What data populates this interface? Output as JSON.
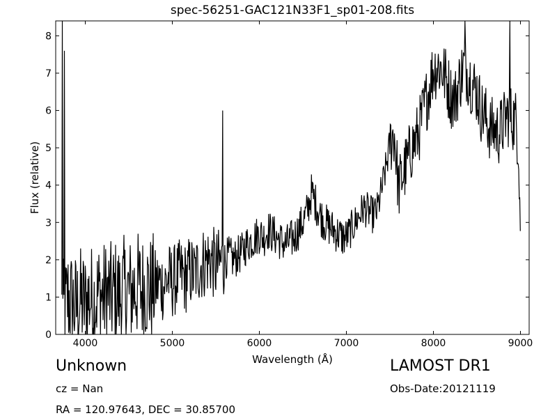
{
  "chart_data": {
    "type": "line",
    "title": "spec-56251-GAC121N33F1_sp01-208.fits",
    "xlabel": "Wavelength (Å)",
    "ylabel": "Flux (relative)",
    "xlim": [
      3660,
      9100
    ],
    "ylim": [
      0,
      8.4
    ],
    "xticks": [
      4000,
      5000,
      6000,
      7000,
      8000,
      9000
    ],
    "yticks": [
      0,
      1,
      2,
      3,
      4,
      5,
      6,
      7,
      8
    ],
    "grid": false,
    "line_color": "#000000",
    "spikes": [
      {
        "x": 3740,
        "y": 8.4
      },
      {
        "x": 3760,
        "y": 7.6
      },
      {
        "x": 5577,
        "y": 6.0
      },
      {
        "x": 8365,
        "y": 8.4
      },
      {
        "x": 8880,
        "y": 8.4
      }
    ],
    "series": [
      {
        "x": [
          3730,
          3760,
          3800,
          3850,
          3900,
          3950,
          4000,
          4050,
          4100,
          4150,
          4200,
          4250,
          4300,
          4350,
          4400,
          4450,
          4500,
          4550,
          4600,
          4650,
          4700,
          4750,
          4800,
          4850,
          4900,
          4950,
          5000,
          5050,
          5100,
          5150,
          5200,
          5250,
          5300,
          5350,
          5400,
          5450,
          5500,
          5550,
          5600,
          5650,
          5700,
          5750,
          5800,
          5850,
          5900,
          5950,
          6000,
          6050,
          6100,
          6150,
          6200,
          6250,
          6300,
          6350,
          6400,
          6450,
          6500,
          6550,
          6600,
          6650,
          6700,
          6750,
          6800,
          6850,
          6900,
          6950,
          7000,
          7050,
          7100,
          7150,
          7200,
          7250,
          7300,
          7350,
          7400,
          7450,
          7500,
          7550,
          7570,
          7600,
          7650,
          7700,
          7750,
          7800,
          7850,
          7900,
          7950,
          8000,
          8050,
          8100,
          8150,
          8200,
          8250,
          8300,
          8350,
          8400,
          8450,
          8500,
          8550,
          8600,
          8650,
          8700,
          8750,
          8800,
          8850,
          8900,
          8950,
          8980,
          9000
        ],
        "y": [
          0.6,
          0.5,
          1.0,
          0.8,
          0.7,
          0.9,
          0.8,
          1.0,
          0.9,
          1.1,
          1.0,
          1.1,
          1.0,
          1.1,
          1.0,
          1.2,
          1.1,
          1.2,
          1.3,
          1.2,
          1.3,
          1.2,
          1.3,
          1.4,
          1.3,
          1.5,
          1.4,
          1.5,
          1.6,
          1.5,
          1.7,
          1.6,
          1.8,
          1.9,
          2.0,
          2.0,
          1.8,
          1.9,
          2.0,
          2.1,
          2.0,
          2.1,
          2.2,
          2.4,
          2.5,
          2.6,
          2.7,
          2.6,
          2.8,
          2.7,
          2.6,
          2.5,
          2.4,
          2.5,
          2.6,
          2.8,
          3.0,
          3.3,
          3.8,
          3.5,
          3.2,
          3.0,
          2.9,
          2.8,
          2.7,
          2.6,
          2.6,
          2.8,
          3.0,
          3.2,
          3.4,
          3.3,
          3.2,
          3.3,
          3.8,
          4.4,
          5.1,
          5.4,
          4.8,
          3.9,
          4.3,
          4.6,
          5.0,
          5.2,
          5.6,
          6.1,
          6.6,
          7.1,
          7.2,
          7.1,
          6.8,
          6.4,
          6.3,
          6.8,
          7.2,
          7.0,
          6.7,
          6.5,
          6.0,
          5.8,
          5.5,
          5.5,
          5.4,
          5.6,
          5.9,
          5.8,
          5.7,
          5.0,
          2.7
        ]
      }
    ]
  },
  "info": {
    "object_class": "Unknown",
    "survey": "LAMOST DR1",
    "cz": "cz = Nan",
    "obs_date": "Obs-Date:20121119",
    "radec": "RA = 120.97643, DEC = 30.85700"
  }
}
